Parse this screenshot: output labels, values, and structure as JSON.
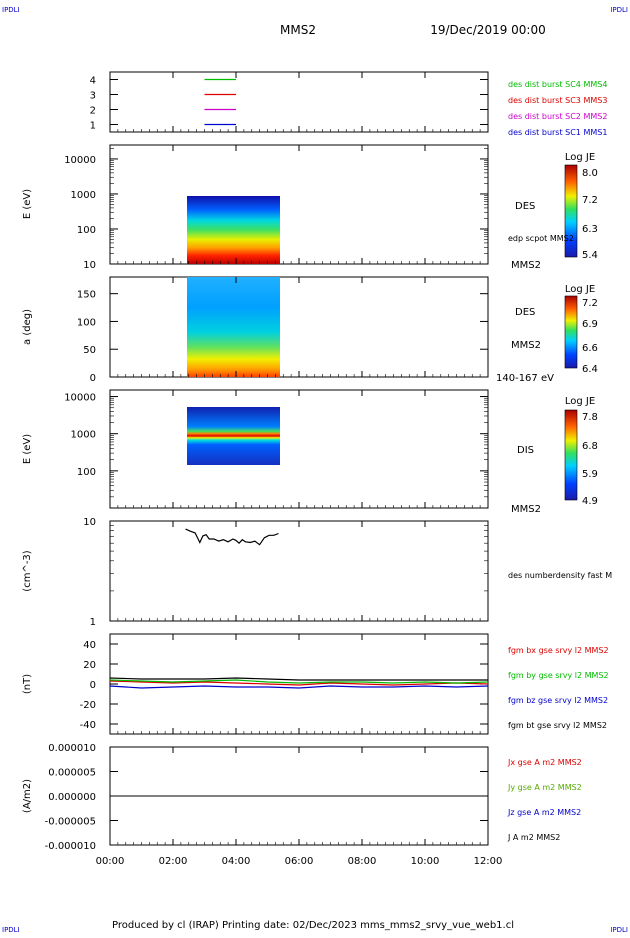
{
  "header": {
    "corner_tl": "IPDLI",
    "corner_tr": "IPDLI",
    "corner_bl": "IPDLI",
    "corner_br": "IPDLI",
    "spacecraft": "MMS2",
    "date": "19/Dec/2019 00:00"
  },
  "footer": {
    "text": "Produced by cl (IRAP)   Printing date: 02/Dec/2023   mms_mms2_srvy_vue_web1.cl"
  },
  "time_axis": {
    "ticks": [
      "00:00",
      "02:00",
      "04:00",
      "06:00",
      "08:00",
      "10:00",
      "12:00"
    ],
    "range_hours": [
      0,
      12
    ]
  },
  "chart_data": [
    {
      "type": "line",
      "panel": "coverage",
      "ylim": [
        0.5,
        4.5
      ],
      "y_ticks": [
        "1",
        "2",
        "3",
        "4"
      ],
      "series": [
        {
          "name": "des dist burst SC1 MMS1",
          "color": "#0000cc",
          "level": 1,
          "x": [
            3.0,
            4.0
          ]
        },
        {
          "name": "des dist burst SC2 MMS2",
          "color": "#cc00cc",
          "level": 2,
          "x": [
            3.0,
            4.0
          ]
        },
        {
          "name": "des dist burst SC3 MMS3",
          "color": "#dd0000",
          "level": 3,
          "x": [
            3.0,
            4.0
          ]
        },
        {
          "name": "des dist burst SC4 MMS4",
          "color": "#00bb00",
          "level": 4,
          "x": [
            3.0,
            4.0
          ]
        }
      ]
    },
    {
      "type": "heatmap",
      "panel": "des_energy",
      "ylabel": "E (eV)",
      "y_log": true,
      "ylim": [
        10,
        25000
      ],
      "y_ticks": [
        "10",
        "100",
        "1000",
        "10000"
      ],
      "x_range": [
        2.4,
        5.35
      ],
      "y_range": [
        10,
        1000
      ],
      "label": "DES",
      "overlay": "edp scpot MMS2",
      "sub": "MMS2",
      "colorbar": {
        "title": "Log JE",
        "ticks": [
          "5.4",
          "6.3",
          "7.2",
          "8.0"
        ]
      }
    },
    {
      "type": "heatmap",
      "panel": "des_pitch",
      "ylabel": "a (deg)",
      "ylim": [
        0,
        180
      ],
      "y_ticks": [
        "0",
        "50",
        "100",
        "150"
      ],
      "x_range": [
        2.4,
        5.35
      ],
      "label": "DES",
      "sub": "MMS2",
      "energy_range": "140-167 eV",
      "colorbar": {
        "title": "Log JE",
        "ticks": [
          "6.4",
          "6.6",
          "6.9",
          "7.2"
        ]
      }
    },
    {
      "type": "heatmap",
      "panel": "dis_energy",
      "ylabel": "E (eV)",
      "y_log": true,
      "ylim": [
        10,
        15000
      ],
      "y_ticks": [
        "100",
        "1000",
        "10000"
      ],
      "x_range": [
        2.4,
        5.35
      ],
      "y_range": [
        200,
        10000
      ],
      "label": "DIS",
      "sub": "MMS2",
      "colorbar": {
        "title": "Log JE",
        "ticks": [
          "4.9",
          "5.9",
          "6.8",
          "7.8"
        ]
      }
    },
    {
      "type": "line",
      "panel": "density",
      "ylabel": "(cm^-3)",
      "y_log": true,
      "ylim": [
        1,
        10
      ],
      "y_ticks": [
        "1",
        "10"
      ],
      "series": [
        {
          "name": "des numberdensity fast M",
          "color": "#000000",
          "x": [
            2.4,
            2.55,
            2.7,
            2.85,
            2.95,
            3.05,
            3.15,
            3.3,
            3.45,
            3.6,
            3.75,
            3.9,
            4.0,
            4.1,
            4.2,
            4.3,
            4.45,
            4.6,
            4.75,
            4.9,
            5.05,
            5.2,
            5.35
          ],
          "y": [
            8.3,
            7.9,
            7.6,
            6.1,
            7.1,
            7.3,
            6.6,
            6.6,
            6.3,
            6.5,
            6.2,
            6.6,
            6.4,
            6.0,
            6.5,
            6.2,
            6.1,
            6.3,
            5.8,
            6.8,
            7.2,
            7.2,
            7.5
          ]
        }
      ]
    },
    {
      "type": "line",
      "panel": "magnetic_field",
      "ylabel": "(nT)",
      "ylim": [
        -50,
        50
      ],
      "y_ticks": [
        "-40",
        "-20",
        "0",
        "20",
        "40"
      ],
      "series": [
        {
          "name": "fgm bx gse srvy l2 MMS2",
          "color": "#dd0000",
          "x": [
            0,
            1,
            2,
            3,
            4,
            5,
            6,
            7,
            8,
            9,
            10,
            11,
            12
          ],
          "y": [
            3,
            2,
            1,
            2,
            1,
            0,
            -1,
            1,
            0,
            -1,
            0,
            1,
            0
          ]
        },
        {
          "name": "fgm by gse srvy l2 MMS2",
          "color": "#00bb00",
          "x": [
            0,
            1,
            2,
            3,
            4,
            5,
            6,
            7,
            8,
            9,
            10,
            11,
            12
          ],
          "y": [
            4,
            3,
            2,
            3,
            4,
            2,
            1,
            2,
            2,
            1,
            2,
            1,
            2
          ]
        },
        {
          "name": "fgm bz gse srvy l2 MMS2",
          "color": "#0000cc",
          "x": [
            0,
            1,
            2,
            3,
            4,
            5,
            6,
            7,
            8,
            9,
            10,
            11,
            12
          ],
          "y": [
            -2,
            -4,
            -3,
            -2,
            -3,
            -3,
            -4,
            -2,
            -3,
            -3,
            -2,
            -3,
            -2
          ]
        },
        {
          "name": "fgm bt gse srvy l2 MMS2",
          "color": "#000000",
          "x": [
            0,
            1,
            2,
            3,
            4,
            5,
            6,
            7,
            8,
            9,
            10,
            11,
            12
          ],
          "y": [
            6,
            5,
            5,
            5,
            6,
            5,
            4,
            4,
            4,
            4,
            4,
            4,
            4
          ]
        }
      ]
    },
    {
      "type": "line",
      "panel": "current_density",
      "ylabel": "(A/m2)",
      "ylim": [
        -1e-05,
        1e-05
      ],
      "y_ticks": [
        "-0.000010",
        "-0.000005",
        "0.000000",
        "0.000005",
        "0.000010"
      ],
      "series": [
        {
          "name": "Jx gse A m2 MMS2",
          "color": "#dd0000",
          "x": [
            0,
            12
          ],
          "y": [
            0,
            0
          ]
        },
        {
          "name": "Jy gse A m2 MMS2",
          "color": "#55aa00",
          "x": [
            0,
            12
          ],
          "y": [
            0,
            0
          ]
        },
        {
          "name": "Jz gse A m2 MMS2",
          "color": "#0000cc",
          "x": [
            0,
            12
          ],
          "y": [
            0,
            0
          ]
        },
        {
          "name": "J A m2 MMS2",
          "color": "#000000",
          "x": [
            0,
            12
          ],
          "y": [
            0,
            0
          ]
        }
      ]
    }
  ]
}
